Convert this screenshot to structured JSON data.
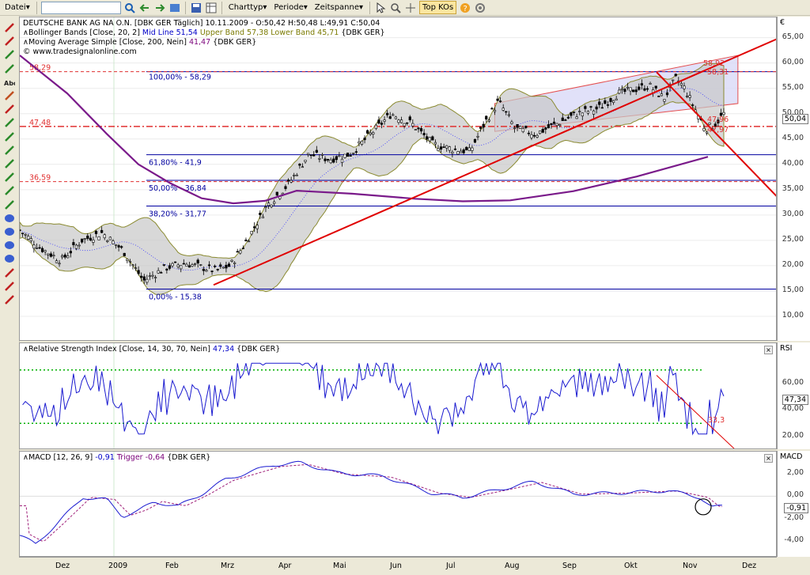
{
  "toolbar": {
    "file_menu": "Datei",
    "search_value": "",
    "charttype_menu": "Charttyp",
    "period_menu": "Periode",
    "timespan_menu": "Zeitspanne",
    "topkos_button": "Top KOs"
  },
  "main_panel": {
    "legend_line1": "DEUTSCHE BANK AG NA O.N. [DBK GER  Täglich]  10.11.2009 - O:50,42 H:50,48 L:49,91 C:50,04",
    "legend_bb_prefix": "Bollinger Bands [Close, 20, 2] ",
    "legend_bb_mid": "Mid Line 51,54 ",
    "legend_bb_upper": "Upper Band 57,38 ",
    "legend_bb_lower": "Lower Band 45,71 ",
    "legend_bb_suffix": "{DBK GER}",
    "legend_ma_prefix": "Moving Average Simple [Close, 200, Nein] ",
    "legend_ma_value": "41,47 ",
    "legend_ma_suffix": "{DBK GER}",
    "website": "www.tradesignalonline.com",
    "currency_label": "€",
    "y_ticks": [
      "65,00",
      "60,00",
      "55,00",
      "50,00",
      "45,00",
      "40,00",
      "35,00",
      "30,00",
      "25,00",
      "20,00",
      "15,00",
      "10,00"
    ],
    "current_price": "50,04",
    "fib_labels": [
      "100,00% - 58,29",
      "61,80% - 41,9",
      "50,00% - 36,84",
      "38,20% - 31,77",
      "0,00% - 15,38"
    ],
    "level_labels": [
      "58,29",
      "47,48",
      "36,59"
    ],
    "channel_labels": [
      "58,92",
      "58,31",
      "47,96",
      "47,97"
    ]
  },
  "rsi_panel": {
    "legend_prefix": "Relative Strength Index [Close, 14, 30, 70, Nein] ",
    "legend_value": "47,34 ",
    "legend_suffix": "{DBK GER}",
    "axis_label": "RSI",
    "y_ticks": [
      "60,00",
      "40,00",
      "20,00"
    ],
    "current": "47,34",
    "trend_label": "33,3"
  },
  "macd_panel": {
    "legend_prefix": "MACD [12, 26, 9] ",
    "legend_macd": "-0,91 ",
    "legend_trigger": "Trigger -0,64 ",
    "legend_suffix": "{DBK GER}",
    "axis_label": "MACD",
    "y_ticks": [
      "2,00",
      "0,00",
      "-2,00",
      "-4,00"
    ],
    "current": "-0,91"
  },
  "x_axis": {
    "labels": [
      "Dez",
      "2009",
      "Feb",
      "Mrz",
      "Apr",
      "Mai",
      "Jun",
      "Jul",
      "Aug",
      "Sep",
      "Okt",
      "Nov",
      "Dez"
    ]
  },
  "colors": {
    "price_line": "#000000",
    "bollinger_fill": "#c8c8c8",
    "bollinger_band": "#8a8a30",
    "mid_line": "#3a3aff",
    "ma200": "#7a1a8a",
    "trend_red": "#e00000",
    "fib_blue": "#0000a0",
    "rsi_line": "#1a1ad0",
    "rsi_bound": "#00b000",
    "macd_line": "#1a1ad0",
    "trigger": "#a0207a"
  }
}
